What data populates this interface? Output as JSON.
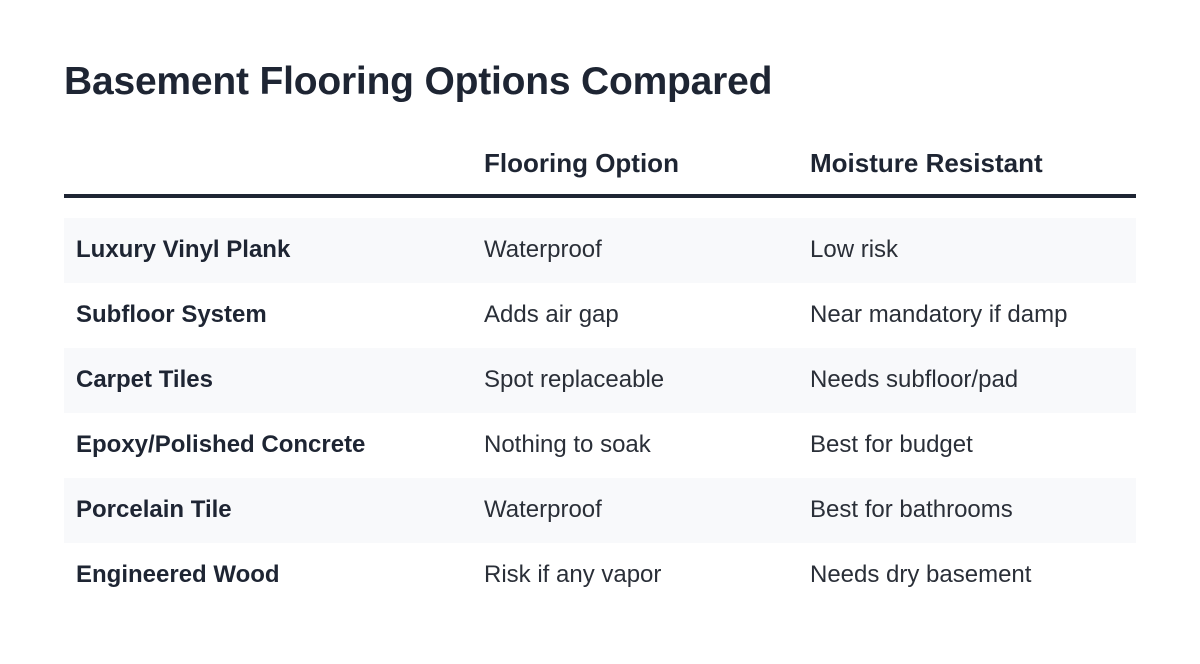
{
  "title": "Basement Flooring Options Compared",
  "table": {
    "headers": [
      "",
      "Flooring Option",
      "Moisture Resistant"
    ],
    "rows": [
      [
        "Luxury Vinyl Plank",
        "Waterproof",
        "Low risk"
      ],
      [
        "Subfloor System",
        "Adds air gap",
        "Near mandatory if damp"
      ],
      [
        "Carpet Tiles",
        "Spot replaceable",
        "Needs subfloor/pad"
      ],
      [
        "Epoxy/Polished Concrete",
        "Nothing to soak",
        "Best for budget"
      ],
      [
        "Porcelain Tile",
        "Waterproof",
        "Best for bathrooms"
      ],
      [
        "Engineered Wood",
        "Risk if any vapor",
        "Needs dry basement"
      ]
    ]
  },
  "colors": {
    "heading": "#1e2533",
    "text": "#2a2f38",
    "row_shade": "#f8f9fb",
    "header_rule": "#1e2533"
  }
}
